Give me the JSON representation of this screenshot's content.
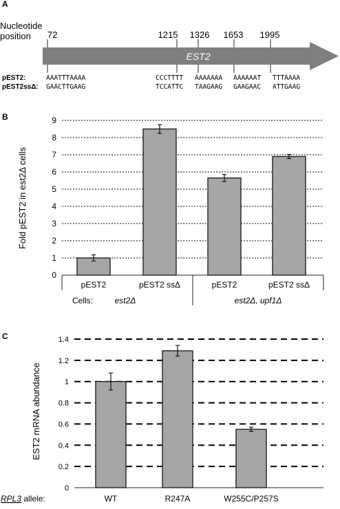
{
  "panel_a": {
    "label": "A",
    "position_title_line1": "Nucleotide",
    "position_title_line2": "position",
    "gene_label": "EST2",
    "rows": [
      {
        "label": "pEST2:",
        "seqs": [
          "AAATTTAAAA",
          "CCCTTTT",
          "AAAAAAA",
          "AAAAAAT",
          "TTTAAAA"
        ]
      },
      {
        "label": "pEST2ssΔ:",
        "seqs": [
          "GAACTTGAAG",
          "TCCATTC",
          "TAAGAAG",
          "GAAGAAC",
          "ATTGAAG"
        ]
      }
    ],
    "positions": [
      "72",
      "1215",
      "1326",
      "1653",
      "1995"
    ],
    "colors": {
      "arrow": "#7f7f7f",
      "gene_text": "#ffffff"
    }
  },
  "chart_data": [
    {
      "panel": "B",
      "type": "bar",
      "categories": [
        "pEST2",
        "pEST2 ssΔ",
        "pEST2",
        "pEST2 ssΔ"
      ],
      "values": [
        1.0,
        8.5,
        5.65,
        6.9
      ],
      "errors": [
        0.18,
        0.25,
        0.2,
        0.12
      ],
      "ylabel": "Fold pEST2 in est2Δ cells",
      "ylim": [
        0,
        9
      ],
      "yticks": [
        "0",
        "1",
        "2",
        "3",
        "4",
        "5",
        "6",
        "7",
        "8",
        "9"
      ],
      "grid": true,
      "groups": [
        {
          "label": "est2Δ",
          "categories": [
            0,
            1
          ]
        },
        {
          "label": "est2Δ, upf1Δ",
          "categories": [
            2,
            3
          ]
        }
      ],
      "group_prefix": "Cells:",
      "bar_color": "#a6a6a6"
    },
    {
      "panel": "C",
      "type": "bar",
      "categories": [
        "WT",
        "R247A",
        "W255C/P257S"
      ],
      "values": [
        1.0,
        1.29,
        0.55
      ],
      "errors": [
        0.08,
        0.05,
        0.02
      ],
      "ylabel": "EST2 mRNA abundance",
      "ylim": [
        0,
        1.4
      ],
      "yticks": [
        "0",
        "0.2",
        "0.4",
        "0.6",
        "0.8",
        "1",
        "1.2",
        "1.4"
      ],
      "grid": true,
      "xprefix": "RPL3 allele:",
      "bar_color": "#a6a6a6"
    }
  ]
}
